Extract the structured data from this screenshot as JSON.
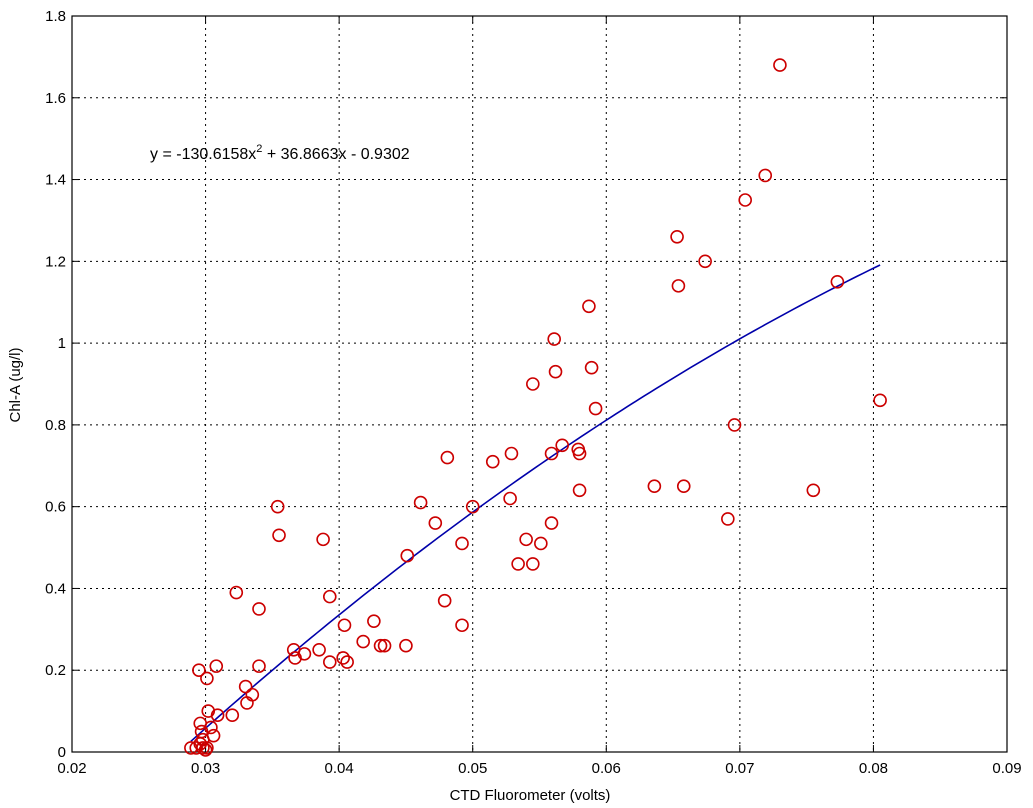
{
  "chart_data": {
    "type": "scatter",
    "xlabel": "CTD Fluorometer (volts)",
    "ylabel": "Chl-A (ug/l)",
    "xlim": [
      0.02,
      0.09
    ],
    "ylim": [
      0,
      1.8
    ],
    "xticks": [
      0.02,
      0.03,
      0.04,
      0.05,
      0.06,
      0.07,
      0.08,
      0.09
    ],
    "xtick_labels": [
      "0.02",
      "0.03",
      "0.04",
      "0.05",
      "0.06",
      "0.07",
      "0.08",
      "0.09"
    ],
    "yticks": [
      0,
      0.2,
      0.4,
      0.6,
      0.8,
      1.0,
      1.2,
      1.4,
      1.6,
      1.8
    ],
    "ytick_labels": [
      "0",
      "0.2",
      "0.4",
      "0.6",
      "0.8",
      "1",
      "1.2",
      "1.4",
      "1.6",
      "1.8"
    ],
    "grid": true,
    "marker_color": "#cc0000",
    "fit_color": "#0000aa",
    "equation": {
      "prefix": "y = -130.6158x",
      "superscript": "2",
      "suffix": " + 36.8663x - 0.9302"
    },
    "fit": {
      "type": "polynomial",
      "coefficients": [
        -130.6158,
        36.8663,
        -0.9302
      ],
      "x_range": [
        0.0289,
        0.0805
      ]
    },
    "series": [
      {
        "x": [
          0.073,
          0.0719,
          0.0704,
          0.0653,
          0.0674,
          0.0654,
          0.0773,
          0.0587,
          0.0561,
          0.0589,
          0.0562,
          0.0545,
          0.0592,
          0.0805,
          0.0696,
          0.0567,
          0.0579,
          0.058,
          0.0559,
          0.0481,
          0.0529,
          0.0515,
          0.058,
          0.0636,
          0.0658,
          0.0755,
          0.0691,
          0.0461,
          0.0528,
          0.05,
          0.0472,
          0.0559,
          0.054,
          0.0492,
          0.0551,
          0.0534,
          0.0545,
          0.0451,
          0.0354,
          0.0355,
          0.0388,
          0.0393,
          0.0479,
          0.0323,
          0.034,
          0.0492,
          0.0404,
          0.0426,
          0.0385,
          0.0418,
          0.0431,
          0.0434,
          0.045,
          0.0366,
          0.0374,
          0.0367,
          0.0403,
          0.0406,
          0.0393,
          0.034,
          0.033,
          0.0295,
          0.0308,
          0.0301,
          0.0331,
          0.0335,
          0.032,
          0.0309,
          0.0302,
          0.0296,
          0.0304,
          0.0297,
          0.0306,
          0.0298,
          0.0289,
          0.0293,
          0.0296,
          0.0298,
          0.03,
          0.0301
        ],
        "y": [
          1.68,
          1.41,
          1.35,
          1.26,
          1.2,
          1.14,
          1.15,
          1.09,
          1.01,
          0.94,
          0.93,
          0.9,
          0.84,
          0.86,
          0.8,
          0.75,
          0.74,
          0.73,
          0.73,
          0.72,
          0.73,
          0.71,
          0.64,
          0.65,
          0.65,
          0.64,
          0.57,
          0.61,
          0.62,
          0.6,
          0.56,
          0.56,
          0.52,
          0.51,
          0.51,
          0.46,
          0.46,
          0.48,
          0.6,
          0.53,
          0.52,
          0.38,
          0.37,
          0.39,
          0.35,
          0.31,
          0.31,
          0.32,
          0.25,
          0.27,
          0.26,
          0.26,
          0.26,
          0.25,
          0.24,
          0.23,
          0.23,
          0.22,
          0.22,
          0.21,
          0.16,
          0.2,
          0.21,
          0.18,
          0.12,
          0.14,
          0.09,
          0.09,
          0.1,
          0.07,
          0.06,
          0.05,
          0.04,
          0.03,
          0.01,
          0.01,
          0.02,
          0.01,
          0.005,
          0.01
        ]
      }
    ]
  }
}
